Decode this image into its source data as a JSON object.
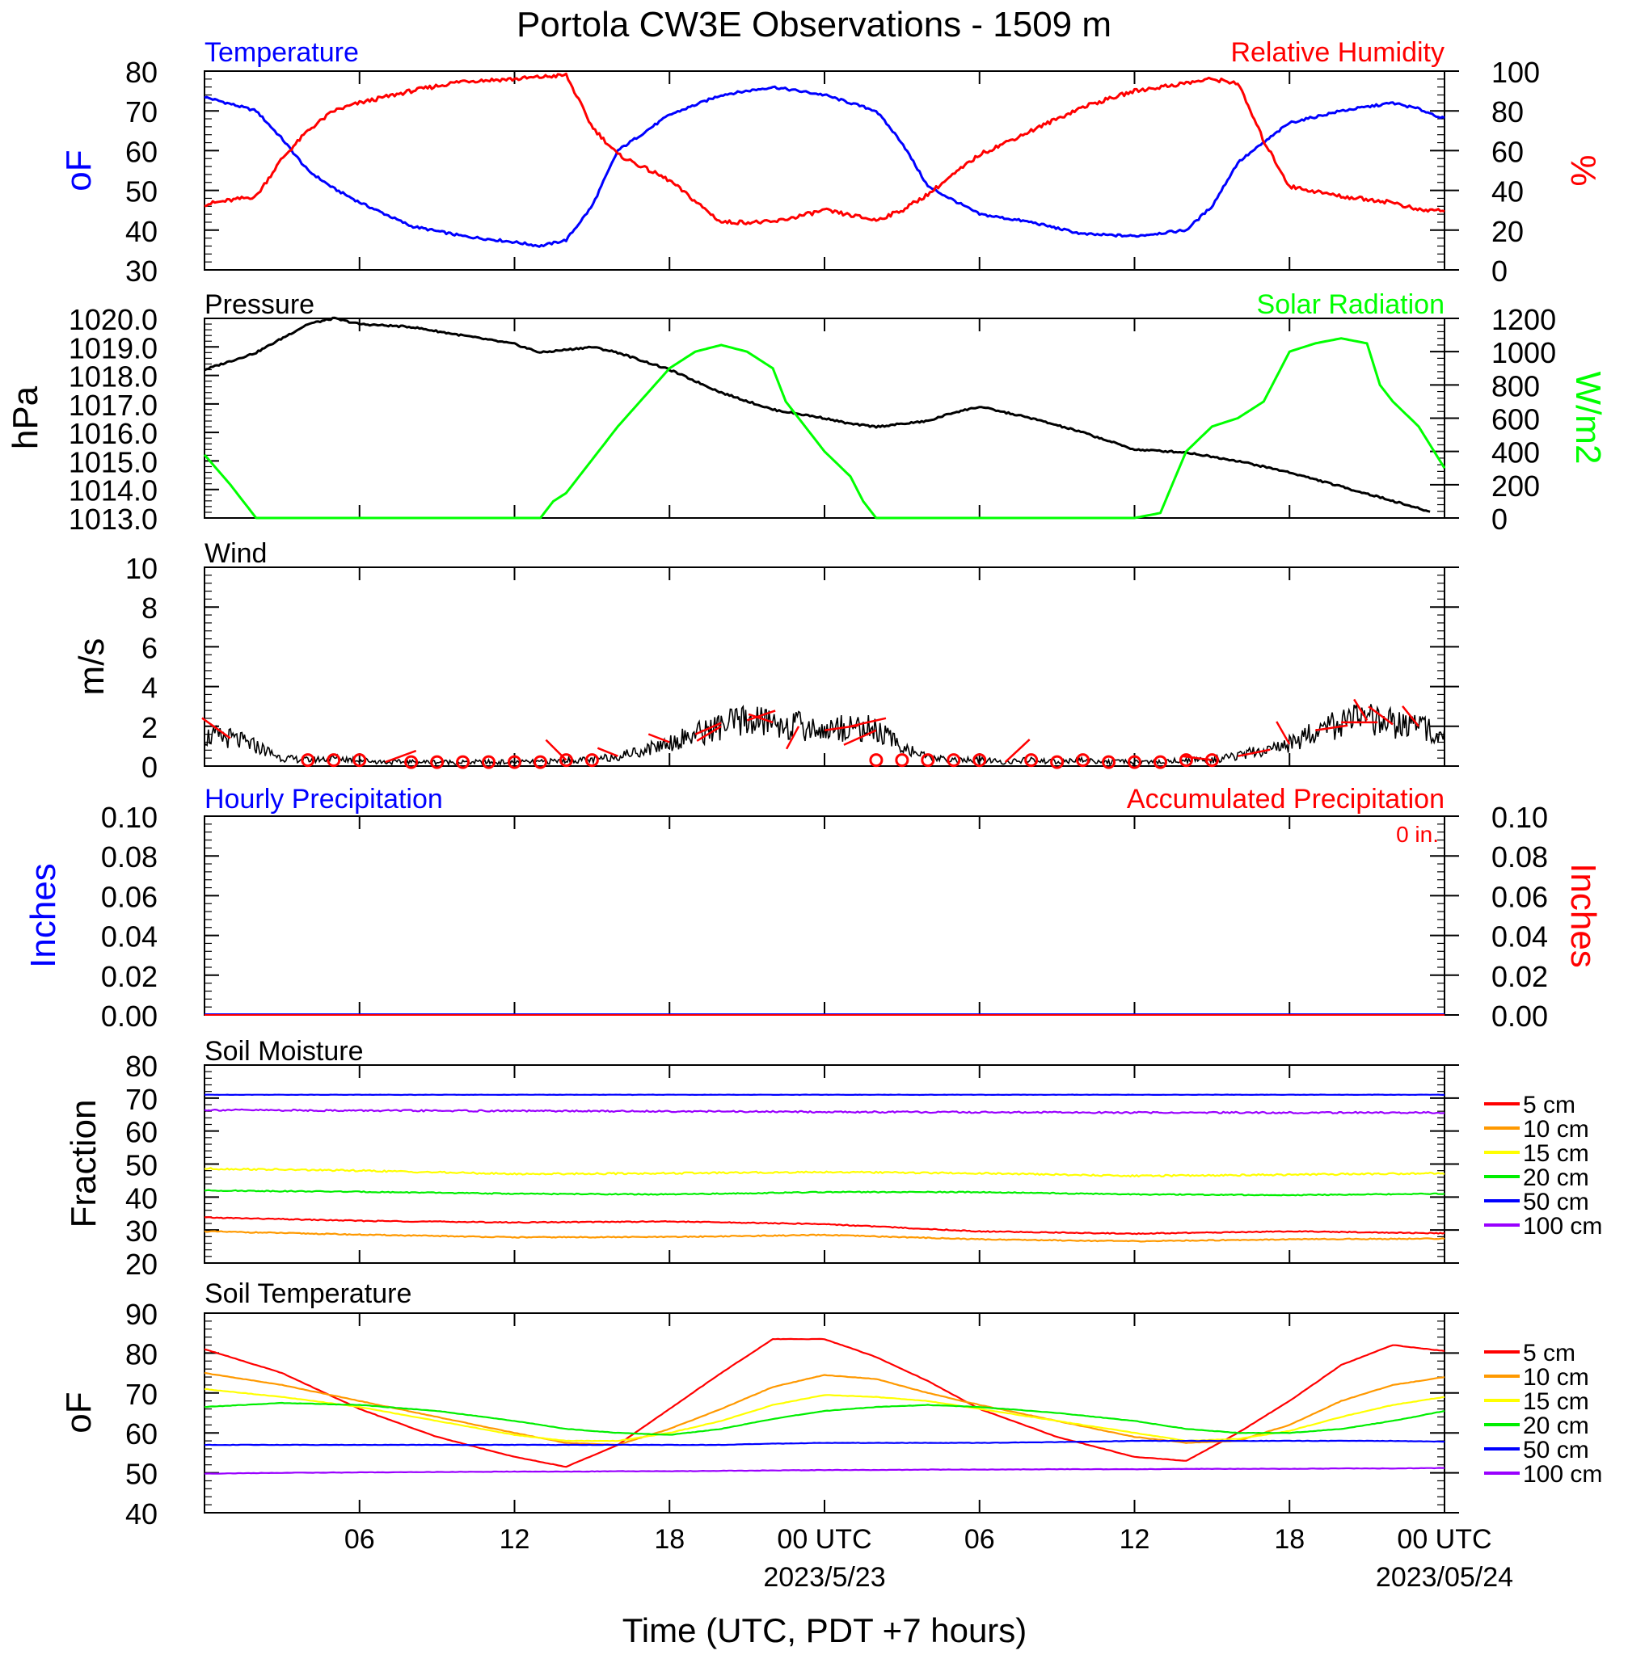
{
  "title": "Portola CW3E Observations - 1509 m",
  "xlabel": "Time (UTC, PDT +7 hours)",
  "x_ticks": [
    "06",
    "12",
    "18",
    "00 UTC",
    "06",
    "12",
    "18",
    "00 UTC"
  ],
  "x_dates": [
    "2023/5/23",
    "2023/05/24"
  ],
  "colors": {
    "temperature": "#0000ff",
    "humidity": "#ff0000",
    "pressure": "#000000",
    "solar": "#00ff00",
    "wind": "#000000",
    "barb": "#ff0000",
    "soil": [
      "#ff0000",
      "#ff9900",
      "#ffff00",
      "#00ee00",
      "#0000ff",
      "#9900ff"
    ]
  },
  "chart_data": [
    {
      "type": "line",
      "panel": "temperature-humidity",
      "left_title": "Temperature",
      "right_title": "Relative Humidity",
      "left_ylabel": "oF",
      "right_ylabel": "%",
      "left_ticks": [
        "80",
        "70",
        "60",
        "50",
        "40",
        "30"
      ],
      "right_ticks": [
        "100",
        "80",
        "60",
        "40",
        "20",
        "0"
      ],
      "left_ylim": [
        30,
        80
      ],
      "right_ylim": [
        0,
        100
      ],
      "x_hours": [
        0,
        2,
        3,
        4,
        5,
        6,
        8,
        10,
        12,
        13,
        14,
        15,
        16,
        18,
        20,
        22,
        24,
        26,
        27,
        28,
        30,
        32,
        34,
        36,
        38,
        39,
        40,
        41,
        42,
        44,
        46,
        47,
        48
      ],
      "series": [
        {
          "name": "Temperature",
          "axis": "left",
          "values": [
            73.5,
            70,
            63,
            55,
            50.5,
            47,
            41,
            38.5,
            37,
            36,
            37.5,
            46,
            60,
            69,
            74,
            76,
            74,
            70,
            62,
            51,
            44,
            42,
            39,
            38.5,
            40,
            46,
            57,
            62,
            67,
            70,
            72,
            70.5,
            68
          ]
        },
        {
          "name": "Relative Humidity",
          "axis": "right",
          "values": [
            33,
            37,
            56,
            70,
            80,
            84,
            90,
            95,
            96,
            97,
            98,
            72,
            58,
            45,
            24,
            24,
            30,
            25,
            30,
            38,
            58,
            70,
            82,
            90,
            94,
            96,
            94,
            65,
            42,
            37,
            34,
            30,
            30
          ]
        }
      ]
    },
    {
      "type": "line",
      "panel": "pressure-solar",
      "left_title": "Pressure",
      "right_title": "Solar Radiation",
      "left_ylabel": "hPa",
      "right_ylabel": "W/m2",
      "left_ticks": [
        "1020.0",
        "1019.0",
        "1018.0",
        "1017.0",
        "1016.0",
        "1015.0",
        "1014.0",
        "1013.0"
      ],
      "right_ticks": [
        "1200",
        "1000",
        "800",
        "600",
        "400",
        "200",
        "0"
      ],
      "left_ylim": [
        1013,
        1020
      ],
      "right_ylim": [
        0,
        1200
      ],
      "x_hours": [
        0,
        2,
        4,
        5,
        6,
        8,
        10,
        12,
        13,
        15,
        16,
        18,
        20,
        22,
        24,
        25,
        26,
        28,
        29,
        30,
        32,
        34,
        35,
        36,
        38,
        40,
        41,
        42,
        44,
        46,
        47.5
      ],
      "series": [
        {
          "name": "Pressure",
          "axis": "left",
          "values": [
            1018.2,
            1018.8,
            1019.8,
            1020.0,
            1019.8,
            1019.7,
            1019.4,
            1019.1,
            1018.8,
            1019.0,
            1018.8,
            1018.2,
            1017.4,
            1016.8,
            1016.5,
            1016.3,
            1016.2,
            1016.4,
            1016.7,
            1016.9,
            1016.5,
            1016.0,
            1015.7,
            1015.4,
            1015.3,
            1015.0,
            1014.8,
            1014.6,
            1014.1,
            1013.6,
            1013.2
          ]
        },
        {
          "name": "Solar Radiation",
          "axis": "right",
          "x_hours": [
            0,
            1,
            2,
            4,
            8,
            12,
            13,
            13.5,
            14,
            16,
            18,
            19,
            20,
            21,
            22,
            22.5,
            23,
            24,
            25,
            25.5,
            26,
            28,
            32,
            34,
            36,
            37,
            38,
            39,
            40,
            41,
            42,
            43,
            44,
            45,
            45.5,
            46,
            47,
            48
          ],
          "values": [
            380,
            200,
            0,
            0,
            0,
            0,
            0,
            100,
            150,
            550,
            900,
            1000,
            1040,
            1000,
            900,
            700,
            600,
            400,
            250,
            100,
            0,
            0,
            0,
            0,
            0,
            30,
            400,
            550,
            600,
            700,
            1000,
            1050,
            1080,
            1050,
            800,
            700,
            550,
            300
          ]
        }
      ]
    },
    {
      "type": "line",
      "panel": "wind",
      "left_title": "Wind",
      "left_ylabel": "m/s",
      "left_ticks": [
        "10",
        "8",
        "6",
        "4",
        "2",
        "0"
      ],
      "left_ylim": [
        0,
        10
      ],
      "series": [
        {
          "name": "Wind",
          "x_hours": [
            0,
            1,
            2,
            3,
            4,
            5,
            6,
            7,
            8,
            9,
            10,
            11,
            12,
            13,
            14,
            15,
            16,
            17,
            18,
            19,
            20,
            21,
            22,
            23,
            24,
            25,
            26,
            27,
            28,
            29,
            30,
            31,
            32,
            33,
            34,
            35,
            36,
            37,
            38,
            39,
            40,
            41,
            42,
            43,
            44,
            45,
            46,
            47,
            48
          ],
          "values": [
            1.5,
            1.4,
            1.0,
            0.4,
            0.3,
            0.4,
            0.3,
            0.2,
            0.2,
            0.2,
            0.2,
            0.2,
            0.2,
            0.2,
            0.3,
            0.3,
            0.5,
            0.8,
            1.2,
            1.6,
            2.0,
            2.3,
            2.2,
            2.0,
            1.8,
            2.0,
            1.8,
            1.0,
            0.4,
            0.3,
            0.3,
            0.2,
            0.3,
            0.2,
            0.3,
            0.2,
            0.2,
            0.2,
            0.3,
            0.3,
            0.5,
            0.8,
            1.1,
            1.8,
            2.2,
            2.3,
            2.1,
            2.0,
            1.7
          ]
        }
      ]
    },
    {
      "type": "line",
      "panel": "precipitation",
      "left_title": "Hourly Precipitation",
      "right_title": "Accumulated Precipitation",
      "annotation": "0 in.",
      "left_ylabel": "Inches",
      "right_ylabel": "Inches",
      "left_ticks": [
        "0.10",
        "0.08",
        "0.06",
        "0.04",
        "0.02",
        "0.00"
      ],
      "right_ticks": [
        "0.10",
        "0.08",
        "0.06",
        "0.04",
        "0.02",
        "0.00"
      ],
      "left_ylim": [
        0,
        0.1
      ],
      "series": [
        {
          "name": "Hourly Precipitation",
          "x_hours": [
            0,
            48
          ],
          "values": [
            0,
            0
          ]
        },
        {
          "name": "Accumulated Precipitation",
          "x_hours": [
            0,
            48
          ],
          "values": [
            0,
            0
          ]
        }
      ]
    },
    {
      "type": "line",
      "panel": "soil-moisture",
      "left_title": "Soil Moisture",
      "left_ylabel": "Fraction",
      "left_ticks": [
        "80",
        "70",
        "60",
        "50",
        "40",
        "30",
        "20"
      ],
      "left_ylim": [
        20,
        80
      ],
      "x_hours": [
        0,
        6,
        12,
        18,
        24,
        30,
        36,
        42,
        48
      ],
      "series": [
        {
          "name": "5 cm",
          "values": [
            33.8,
            32.8,
            32.3,
            32.6,
            31.8,
            29.6,
            28.9,
            29.6,
            29.0
          ]
        },
        {
          "name": "10 cm",
          "values": [
            29.6,
            28.6,
            27.8,
            27.9,
            28.5,
            27.2,
            26.6,
            27.2,
            27.4
          ]
        },
        {
          "name": "15 cm",
          "values": [
            48.6,
            48.0,
            47.0,
            47.2,
            47.6,
            47.2,
            46.4,
            46.8,
            47.2
          ]
        },
        {
          "name": "20 cm",
          "values": [
            42.0,
            41.6,
            41.0,
            40.8,
            41.5,
            41.5,
            40.8,
            40.6,
            41.0
          ]
        },
        {
          "name": "50 cm",
          "values": [
            71.0,
            71.0,
            71.0,
            71.0,
            71.0,
            71.0,
            71.0,
            71.0,
            71.0
          ]
        },
        {
          "name": "100 cm",
          "values": [
            66.4,
            66.2,
            66.1,
            66.0,
            65.8,
            65.7,
            65.6,
            65.6,
            65.6
          ]
        }
      ]
    },
    {
      "type": "line",
      "panel": "soil-temperature",
      "left_title": "Soil Temperature",
      "left_ylabel": "oF",
      "left_ticks": [
        "90",
        "80",
        "70",
        "60",
        "50",
        "40"
      ],
      "left_ylim": [
        40,
        90
      ],
      "x_hours": [
        0,
        3,
        6,
        9,
        12,
        14,
        16,
        18,
        20,
        22,
        24,
        26,
        28,
        30,
        33,
        36,
        38,
        40,
        42,
        44,
        46,
        48
      ],
      "series": [
        {
          "name": "5 cm",
          "values": [
            81,
            75,
            66,
            59,
            54,
            51.5,
            57,
            66,
            75,
            83.5,
            83.5,
            79,
            73,
            66,
            59,
            54,
            53,
            60,
            68,
            77,
            82,
            80.5
          ]
        },
        {
          "name": "10 cm",
          "values": [
            75,
            72,
            68,
            64,
            60,
            57.5,
            57,
            61,
            66,
            71.5,
            74.5,
            73.5,
            70,
            67,
            63,
            59,
            57.5,
            58,
            62,
            68,
            72,
            74
          ]
        },
        {
          "name": "15 cm",
          "values": [
            71,
            69,
            66.5,
            63,
            59.5,
            58,
            58,
            60,
            63,
            67,
            69.5,
            69,
            68,
            66,
            63,
            60,
            58,
            58.5,
            60.5,
            64,
            67,
            69
          ]
        },
        {
          "name": "20 cm",
          "values": [
            66.5,
            67.5,
            67,
            65.5,
            63,
            61,
            60,
            59.5,
            61,
            63.5,
            65.5,
            66.5,
            67,
            66.5,
            65,
            63,
            61,
            60,
            60,
            61,
            63,
            65.5
          ]
        },
        {
          "name": "50 cm",
          "values": [
            57,
            57,
            57,
            57,
            57,
            57,
            57,
            57,
            57,
            57.3,
            57.5,
            57.5,
            57.5,
            57.5,
            57.7,
            58,
            58,
            58,
            58,
            58,
            58,
            57.8
          ]
        },
        {
          "name": "100 cm",
          "values": [
            49.8,
            50,
            50.1,
            50.2,
            50.3,
            50.3,
            50.4,
            50.4,
            50.5,
            50.6,
            50.7,
            50.7,
            50.8,
            50.8,
            50.9,
            50.9,
            51,
            51,
            51,
            51.1,
            51.1,
            51.2
          ]
        }
      ]
    }
  ],
  "legend": [
    "5 cm",
    "10 cm",
    "15 cm",
    "20 cm",
    "50 cm",
    "100 cm"
  ]
}
